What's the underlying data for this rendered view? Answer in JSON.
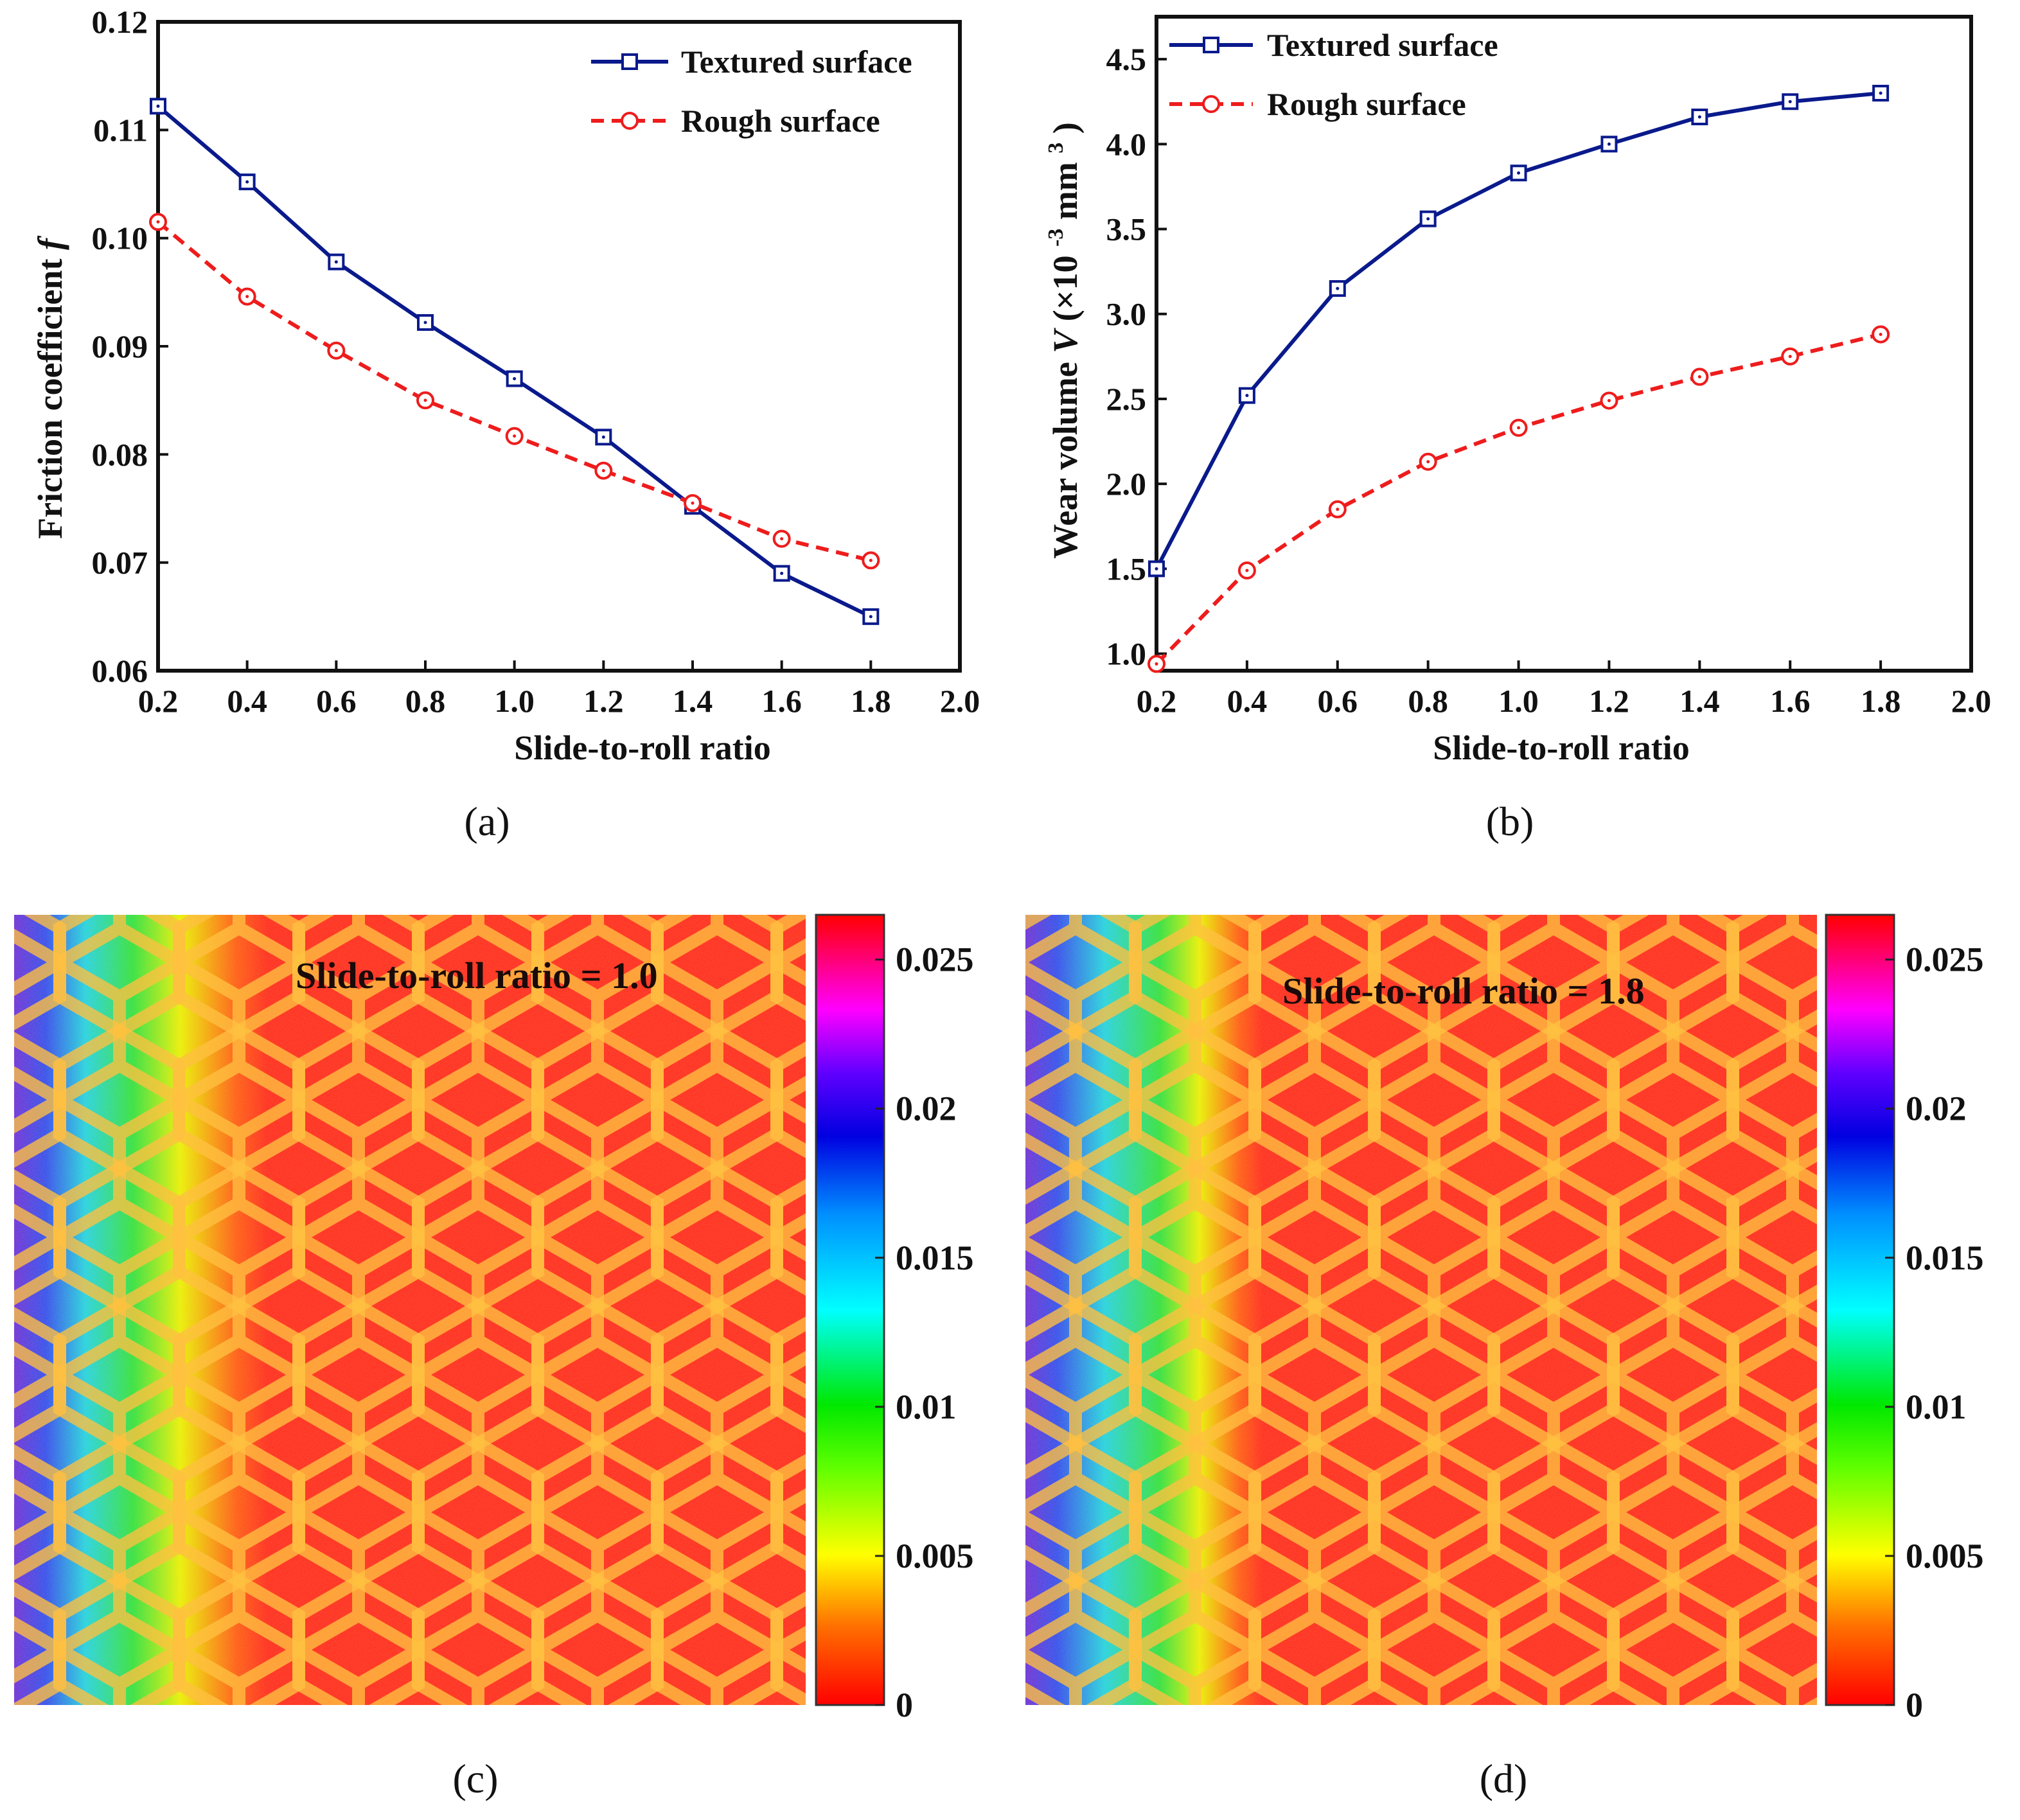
{
  "chart_data": [
    {
      "type": "line",
      "title": "",
      "xlabel": "Slide-to-roll ratio",
      "ylabel": "Friction coefficient",
      "ylabel_symbol": "f",
      "xlim": [
        0.2,
        2.0
      ],
      "ylim": [
        0.06,
        0.12
      ],
      "xticks": [
        "0.2",
        "0.4",
        "0.6",
        "0.8",
        "1.0",
        "1.2",
        "1.4",
        "1.6",
        "1.8",
        "2.0"
      ],
      "yticks": [
        "0.06",
        "0.07",
        "0.08",
        "0.09",
        "0.10",
        "0.11",
        "0.12"
      ],
      "x": [
        0.2,
        0.4,
        0.6,
        0.8,
        1.0,
        1.2,
        1.4,
        1.6,
        1.8
      ],
      "series": [
        {
          "name": "Textured surface",
          "color": "#0a1a8c",
          "marker": "square",
          "dash": "solid",
          "values": [
            0.1122,
            0.1052,
            0.0978,
            0.0922,
            0.087,
            0.0816,
            0.0752,
            0.069,
            0.065
          ]
        },
        {
          "name": "Rough surface",
          "color": "#ee1c1c",
          "marker": "circle",
          "dash": "dashed",
          "values": [
            0.1015,
            0.0946,
            0.0896,
            0.085,
            0.0817,
            0.0785,
            0.0755,
            0.0722,
            0.0702
          ]
        }
      ],
      "legend_position": "top-right",
      "caption": "(a)"
    },
    {
      "type": "line",
      "title": "",
      "xlabel": "Slide-to-roll ratio",
      "ylabel_prefix": "Wear volume",
      "ylabel_symbol": "V",
      "ylabel_unit_open": "(×10",
      "ylabel_unit_exp": "-3",
      "ylabel_unit_mm": "mm",
      "ylabel_unit_exp2": "3",
      "ylabel_unit_close": ")",
      "xlim": [
        0.2,
        2.0
      ],
      "ylim": [
        0.9,
        4.75
      ],
      "xticks": [
        "0.2",
        "0.4",
        "0.6",
        "0.8",
        "1.0",
        "1.2",
        "1.4",
        "1.6",
        "1.8",
        "2.0"
      ],
      "yticks": [
        "1.0",
        "1.5",
        "2.0",
        "2.5",
        "3.0",
        "3.5",
        "4.0",
        "4.5"
      ],
      "x": [
        0.2,
        0.4,
        0.6,
        0.8,
        1.0,
        1.2,
        1.4,
        1.6,
        1.8
      ],
      "series": [
        {
          "name": "Textured surface",
          "color": "#0a1a8c",
          "marker": "square",
          "dash": "solid",
          "values": [
            1.5,
            2.52,
            3.15,
            3.56,
            3.83,
            4.0,
            4.16,
            4.25,
            4.3
          ]
        },
        {
          "name": "Rough surface",
          "color": "#ee1c1c",
          "marker": "circle",
          "dash": "dashed",
          "values": [
            0.94,
            1.49,
            1.85,
            2.13,
            2.33,
            2.49,
            2.63,
            2.75,
            2.88
          ]
        }
      ],
      "legend_position": "top-left",
      "caption": "(b)"
    },
    {
      "type": "heatmap",
      "annotation": "Slide-to-roll ratio = 1.0",
      "colorbar_ticks": [
        "0",
        "0.005",
        "0.01",
        "0.015",
        "0.02",
        "0.025"
      ],
      "colorbar_range": [
        0,
        0.0265
      ],
      "pattern": "hexagonal texture",
      "caption": "(c)"
    },
    {
      "type": "heatmap",
      "annotation": "Slide-to-roll ratio = 1.8",
      "colorbar_ticks": [
        "0",
        "0.005",
        "0.01",
        "0.015",
        "0.02",
        "0.025"
      ],
      "colorbar_range": [
        0,
        0.0265
      ],
      "pattern": "hexagonal texture",
      "caption": "(d)"
    }
  ]
}
